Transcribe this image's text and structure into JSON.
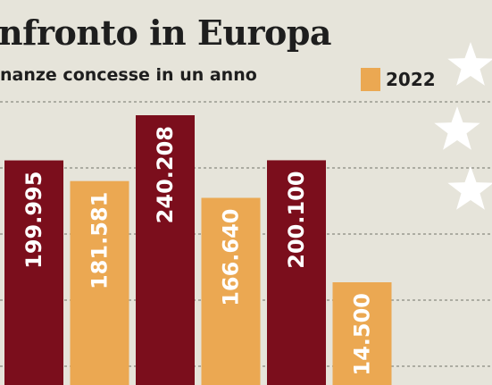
{
  "header": {
    "title": "nfronto in Europa",
    "subtitle": "nanze concesse in un anno"
  },
  "legend": {
    "label": "2022"
  },
  "colors": {
    "bar_2022": "#eba852",
    "bar_other": "#7b0e1c",
    "grid": "#8a8a80",
    "star": "#ffffff",
    "label": "#ffffff",
    "background": "#e6e4da"
  },
  "chart_data": {
    "type": "bar",
    "title": "nfronto in Europa",
    "subtitle": "nanze concesse in un anno",
    "bars": [
      {
        "label": "199.995",
        "value": 199995,
        "series": "other"
      },
      {
        "label": "181.581",
        "value": 181581,
        "series": "2022"
      },
      {
        "label": "240.208",
        "value": 240208,
        "series": "other"
      },
      {
        "label": "166.640",
        "value": 166640,
        "series": "2022"
      },
      {
        "label": "200.100",
        "value": 200100,
        "series": "other"
      },
      {
        "label": "14.500",
        "value": 14500,
        "series": "2022"
      }
    ],
    "legend": [
      {
        "name": "2022",
        "color": "#eba852"
      }
    ],
    "grid": true
  }
}
